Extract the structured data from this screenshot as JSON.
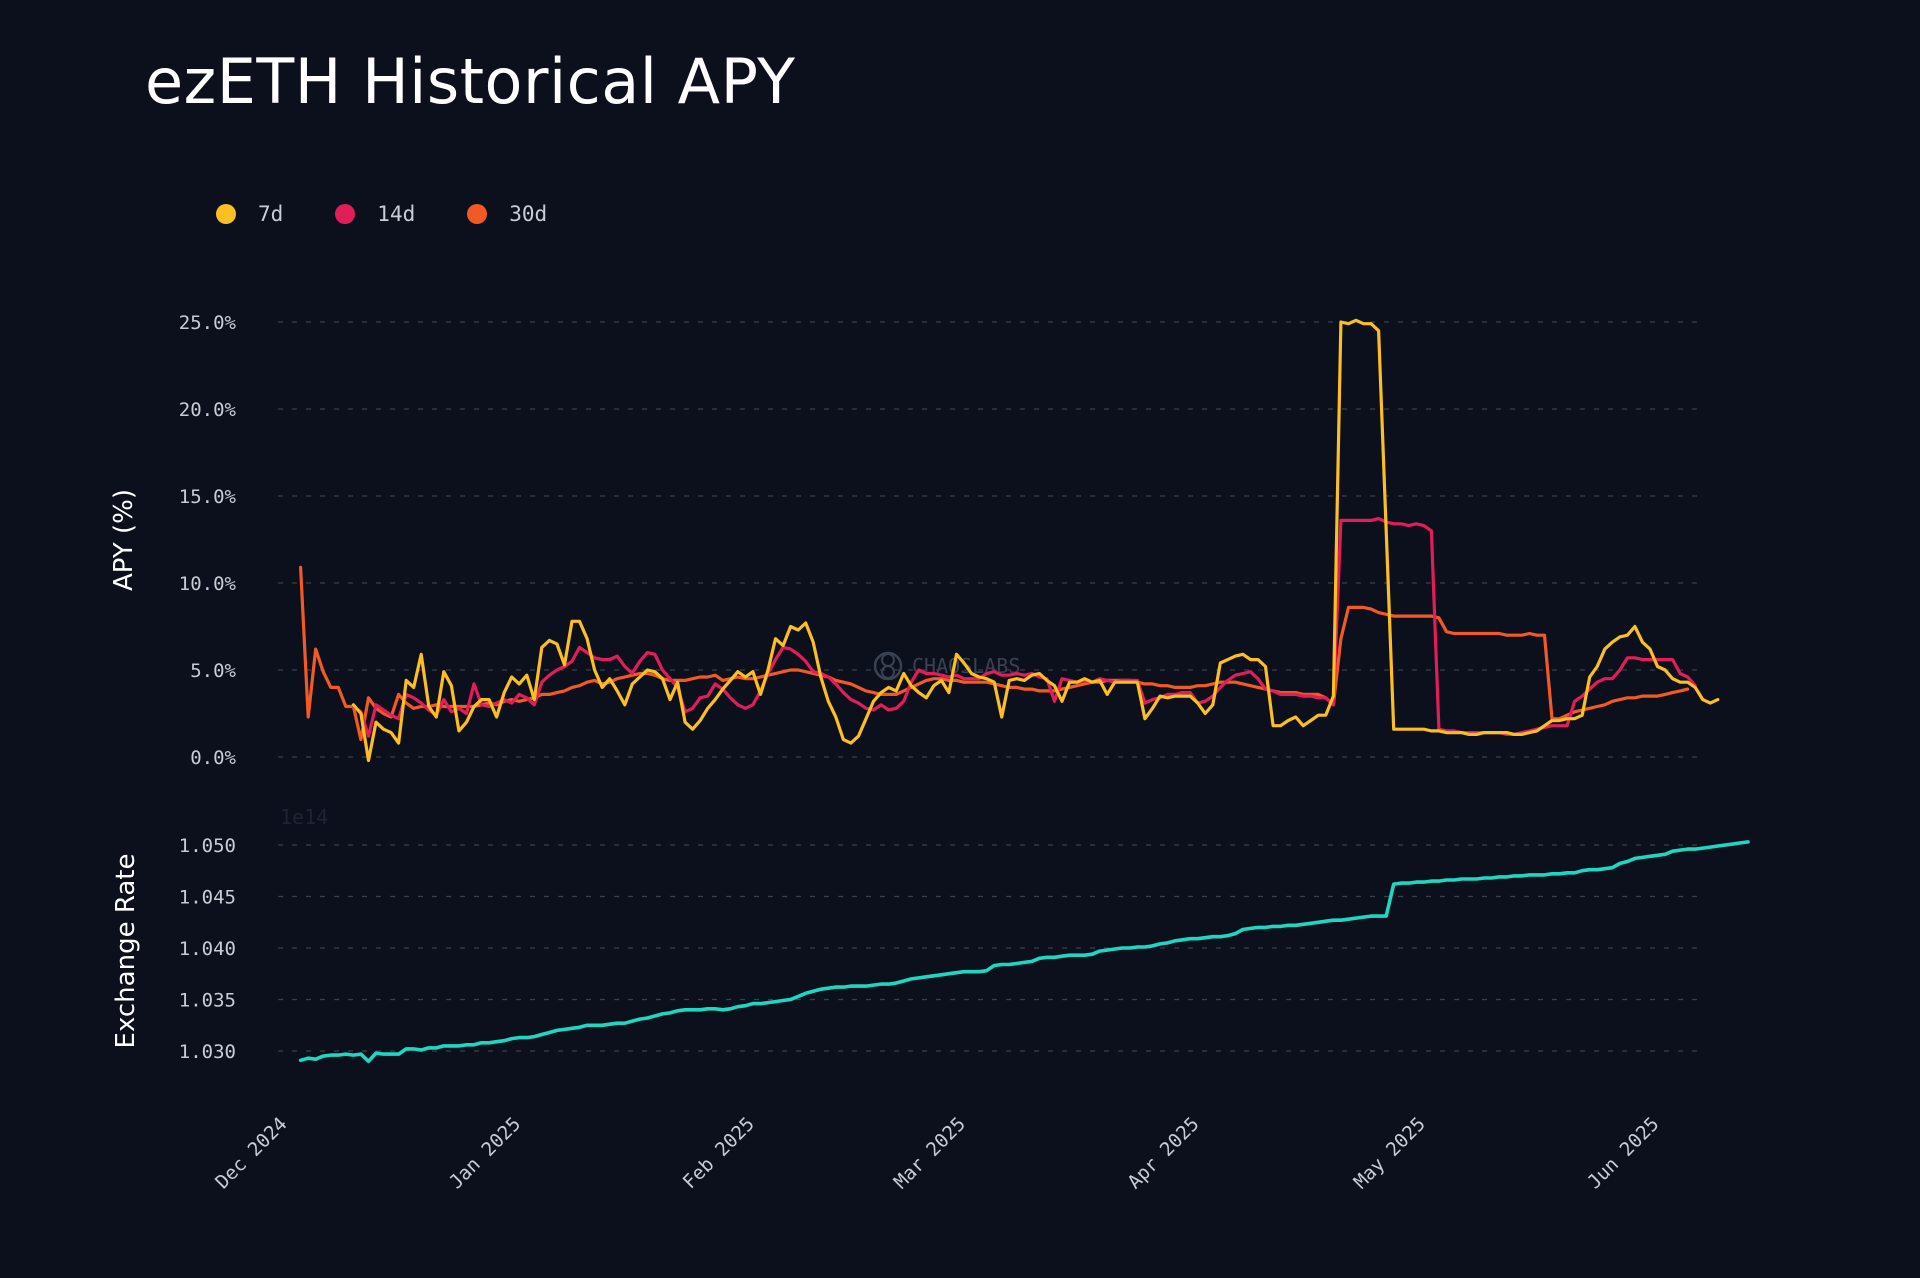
{
  "title": "ezETH Historical APY",
  "colors": {
    "background": "#0b101c",
    "grid": "#3a3f4b",
    "series_7d": "#fbbf24",
    "series_14d": "#e11d5a",
    "series_30d": "#f35a23",
    "exchange_rate": "#1fd6c0"
  },
  "watermark": "CHAOSLABS",
  "chart_data": [
    {
      "type": "line",
      "ylabel": "APY (%)",
      "ylim": [
        -1.0,
        26.5
      ],
      "yticks": [
        0,
        5,
        10,
        15,
        20,
        25
      ],
      "ytick_labels": [
        "0.0%",
        "5.0%",
        "10.0%",
        "15.0%",
        "20.0%",
        "25.0%"
      ],
      "grid": true,
      "legend_position": "top-left",
      "x_start": "2024-12-04",
      "x_step_days": 1,
      "series": [
        {
          "name": "7d",
          "color": "#fbbf24",
          "values": [
            null,
            null,
            null,
            null,
            null,
            null,
            null,
            3.0,
            2.5,
            -0.2,
            2.0,
            1.6,
            1.4,
            0.8,
            4.4,
            4.0,
            5.9,
            2.9,
            2.3,
            4.9,
            4.1,
            1.5,
            2.0,
            2.9,
            3.3,
            3.3,
            2.3,
            3.7,
            4.6,
            4.2,
            4.7,
            3.3,
            6.3,
            6.7,
            6.5,
            5.3,
            7.8,
            7.8,
            6.8,
            5.0,
            4.0,
            4.5,
            3.8,
            3.0,
            4.2,
            4.6,
            5.0,
            4.9,
            4.5,
            3.3,
            4.3,
            2.0,
            1.6,
            2.1,
            2.8,
            3.3,
            3.9,
            4.4,
            4.9,
            4.6,
            4.9,
            3.6,
            5.0,
            6.8,
            6.4,
            7.5,
            7.3,
            7.7,
            6.6,
            4.6,
            3.2,
            2.3,
            1.0,
            0.8,
            1.2,
            2.2,
            3.2,
            3.7,
            4.0,
            3.8,
            4.8,
            4.1,
            3.7,
            3.4,
            4.1,
            4.4,
            3.7,
            5.9,
            5.4,
            4.8,
            4.6,
            4.5,
            4.3,
            2.3,
            4.4,
            4.5,
            4.4,
            4.7,
            4.8,
            4.4,
            4.1,
            3.2,
            4.3,
            4.3,
            4.5,
            4.3,
            4.4,
            3.6,
            4.3,
            4.3,
            4.3,
            4.3,
            2.2,
            2.8,
            3.5,
            3.4,
            3.5,
            3.5,
            3.5,
            3.1,
            2.5,
            3.0,
            5.4,
            5.6,
            5.8,
            5.9,
            5.6,
            5.6,
            5.2,
            1.8,
            1.8,
            2.1,
            2.3,
            1.8,
            2.1,
            2.4,
            2.4,
            3.5,
            25.0,
            24.9,
            25.1,
            24.9,
            24.9,
            24.5,
            13.0,
            1.6,
            1.6,
            1.6,
            1.6,
            1.6,
            1.5,
            1.5,
            1.4,
            1.4,
            1.4,
            1.3,
            1.3,
            1.4,
            1.4,
            1.4,
            1.4,
            1.3,
            1.3,
            1.4,
            1.5,
            1.8,
            2.1,
            2.1,
            2.2,
            2.2,
            2.4,
            4.6,
            5.2,
            6.2,
            6.6,
            6.9,
            7.0,
            7.5,
            6.6,
            6.2,
            5.2,
            5.0,
            4.5,
            4.3,
            4.3,
            4.0,
            3.3,
            3.1,
            3.3
          ]
        },
        {
          "name": "14d",
          "color": "#e11d5a",
          "values": [
            null,
            null,
            null,
            null,
            null,
            null,
            null,
            2.9,
            2.6,
            1.2,
            3.0,
            2.7,
            2.4,
            2.2,
            3.6,
            3.4,
            3.1,
            2.7,
            2.4,
            3.3,
            2.6,
            2.8,
            2.5,
            4.2,
            3.0,
            2.9,
            3.1,
            3.3,
            3.1,
            3.6,
            3.4,
            3.0,
            4.3,
            4.7,
            5.0,
            5.2,
            5.5,
            6.3,
            6.0,
            5.7,
            5.6,
            5.6,
            5.8,
            5.2,
            4.8,
            5.5,
            6.0,
            5.9,
            5.0,
            4.5,
            4.0,
            2.6,
            2.8,
            3.4,
            3.5,
            4.2,
            3.9,
            3.4,
            3.0,
            2.8,
            3.0,
            3.8,
            4.8,
            5.6,
            6.3,
            6.2,
            5.9,
            5.5,
            4.9,
            4.8,
            4.6,
            4.2,
            3.7,
            3.3,
            3.1,
            2.8,
            2.7,
            3.0,
            2.7,
            2.8,
            3.2,
            4.3,
            5.0,
            4.8,
            4.8,
            4.7,
            4.6,
            4.7,
            4.5,
            4.5,
            4.5,
            4.8,
            4.9,
            4.7,
            4.7,
            4.8,
            4.7,
            4.8,
            4.6,
            4.5,
            3.2,
            4.5,
            4.4,
            4.3,
            4.4,
            4.3,
            4.5,
            4.4,
            4.3,
            4.4,
            4.4,
            4.4,
            3.1,
            3.3,
            3.4,
            3.6,
            3.6,
            3.7,
            3.7,
            3.1,
            3.2,
            3.5,
            4.0,
            4.4,
            4.7,
            4.8,
            4.9,
            4.5,
            3.9,
            3.8,
            3.6,
            3.6,
            3.6,
            3.5,
            3.5,
            3.4,
            3.4,
            3.0,
            13.6,
            13.6,
            13.6,
            13.6,
            13.6,
            13.7,
            13.5,
            13.4,
            13.4,
            13.3,
            13.4,
            13.3,
            13.0,
            1.6,
            1.5,
            1.5,
            1.4,
            1.4,
            1.4,
            1.4,
            1.4,
            1.4,
            1.3,
            1.3,
            1.4,
            1.5,
            1.6,
            1.7,
            1.8,
            1.8,
            1.8,
            3.2,
            3.5,
            3.9,
            4.3,
            4.5,
            4.5,
            5.0,
            5.7,
            5.7,
            5.6,
            5.6,
            5.6,
            5.6,
            5.6,
            4.8,
            4.6,
            4.1
          ]
        },
        {
          "name": "30d",
          "color": "#f35a23",
          "values": [
            10.9,
            2.3,
            6.2,
            4.9,
            4.0,
            4.0,
            2.9,
            2.9,
            1.0,
            3.4,
            2.8,
            2.5,
            2.3,
            3.6,
            3.1,
            2.8,
            2.9,
            2.9,
            3.0,
            2.9,
            2.9,
            2.9,
            2.9,
            2.9,
            3.0,
            3.1,
            3.0,
            3.2,
            3.3,
            3.2,
            3.3,
            3.4,
            3.6,
            3.6,
            3.7,
            3.8,
            4.0,
            4.1,
            4.3,
            4.4,
            4.2,
            4.3,
            4.5,
            4.6,
            4.7,
            4.8,
            4.8,
            4.7,
            4.5,
            4.4,
            4.4,
            4.4,
            4.5,
            4.6,
            4.6,
            4.7,
            4.4,
            4.5,
            4.6,
            4.5,
            4.5,
            4.6,
            4.7,
            4.8,
            4.9,
            5.0,
            5.0,
            4.9,
            4.8,
            4.7,
            4.6,
            4.4,
            4.3,
            4.2,
            4.0,
            3.8,
            3.7,
            3.6,
            3.6,
            3.6,
            3.8,
            4.0,
            4.2,
            4.4,
            4.5,
            4.5,
            4.4,
            4.4,
            4.3,
            4.3,
            4.3,
            4.3,
            4.2,
            4.1,
            4.0,
            4.0,
            3.9,
            3.9,
            3.8,
            3.8,
            3.8,
            3.9,
            4.0,
            4.1,
            4.2,
            4.3,
            4.3,
            4.4,
            4.4,
            4.4,
            4.4,
            4.3,
            4.2,
            4.2,
            4.1,
            4.1,
            4.0,
            4.0,
            4.0,
            4.1,
            4.1,
            4.2,
            4.3,
            4.3,
            4.3,
            4.2,
            4.1,
            4.0,
            3.9,
            3.8,
            3.7,
            3.7,
            3.7,
            3.6,
            3.6,
            3.6,
            3.4,
            3.0,
            6.8,
            8.6,
            8.6,
            8.6,
            8.5,
            8.3,
            8.2,
            8.1,
            8.1,
            8.1,
            8.1,
            8.1,
            8.1,
            8.0,
            7.2,
            7.1,
            7.1,
            7.1,
            7.1,
            7.1,
            7.1,
            7.1,
            7.0,
            7.0,
            7.0,
            7.1,
            7.0,
            7.0,
            2.2,
            2.2,
            2.4,
            2.6,
            2.7,
            2.8,
            2.9,
            3.0,
            3.2,
            3.3,
            3.4,
            3.4,
            3.5,
            3.5,
            3.5,
            3.6,
            3.7,
            3.8,
            3.9
          ]
        }
      ]
    },
    {
      "type": "line",
      "ylabel": "Exchange Rate",
      "y_offset_label": "1e14",
      "ylim": [
        1.0265,
        1.0515
      ],
      "yticks": [
        1.03,
        1.035,
        1.04,
        1.045,
        1.05
      ],
      "ytick_labels": [
        "1.030",
        "1.035",
        "1.040",
        "1.045",
        "1.050"
      ],
      "grid": true,
      "x_start": "2024-12-04",
      "x_step_days": 1,
      "series": [
        {
          "color": "#1fd6c0",
          "values": [
            1.0291,
            1.0293,
            1.0292,
            1.0295,
            1.0296,
            1.0296,
            1.0297,
            1.0296,
            1.0297,
            1.029,
            1.0298,
            1.0297,
            1.0297,
            1.0297,
            1.0302,
            1.0302,
            1.0301,
            1.0303,
            1.0303,
            1.0305,
            1.0305,
            1.0305,
            1.0306,
            1.0306,
            1.0308,
            1.0308,
            1.0309,
            1.031,
            1.0312,
            1.0313,
            1.0313,
            1.0314,
            1.0316,
            1.0318,
            1.032,
            1.0321,
            1.0322,
            1.0323,
            1.0325,
            1.0325,
            1.0325,
            1.0326,
            1.0327,
            1.0327,
            1.0329,
            1.0331,
            1.0332,
            1.0334,
            1.0336,
            1.0337,
            1.0339,
            1.034,
            1.034,
            1.034,
            1.0341,
            1.0341,
            1.034,
            1.0341,
            1.0343,
            1.0344,
            1.0346,
            1.0346,
            1.0347,
            1.0348,
            1.0349,
            1.035,
            1.0353,
            1.0356,
            1.0358,
            1.036,
            1.0361,
            1.0362,
            1.0362,
            1.0363,
            1.0363,
            1.0363,
            1.0364,
            1.0365,
            1.0365,
            1.0366,
            1.0368,
            1.037,
            1.0371,
            1.0372,
            1.0373,
            1.0374,
            1.0375,
            1.0376,
            1.0377,
            1.0377,
            1.0377,
            1.0378,
            1.0383,
            1.0384,
            1.0384,
            1.0385,
            1.0386,
            1.0387,
            1.039,
            1.0391,
            1.0391,
            1.0392,
            1.0393,
            1.0393,
            1.0393,
            1.0394,
            1.0397,
            1.0398,
            1.0399,
            1.04,
            1.04,
            1.0401,
            1.0401,
            1.0402,
            1.0404,
            1.0405,
            1.0407,
            1.0408,
            1.0409,
            1.0409,
            1.041,
            1.0411,
            1.0411,
            1.0412,
            1.0414,
            1.0418,
            1.0419,
            1.042,
            1.042,
            1.0421,
            1.0421,
            1.0422,
            1.0422,
            1.0423,
            1.0424,
            1.0425,
            1.0426,
            1.0427,
            1.0427,
            1.0428,
            1.0429,
            1.043,
            1.0431,
            1.0431,
            1.0431,
            1.0462,
            1.0463,
            1.0463,
            1.0464,
            1.0464,
            1.0465,
            1.0465,
            1.0466,
            1.0466,
            1.0467,
            1.0467,
            1.0467,
            1.0468,
            1.0468,
            1.0469,
            1.0469,
            1.047,
            1.047,
            1.0471,
            1.0471,
            1.0471,
            1.0472,
            1.0472,
            1.0473,
            1.0473,
            1.0475,
            1.0476,
            1.0476,
            1.0477,
            1.0478,
            1.0482,
            1.0484,
            1.0487,
            1.0488,
            1.0489,
            1.049,
            1.0491,
            1.0494,
            1.0495,
            1.0496,
            1.0496,
            1.0497,
            1.0498,
            1.0499,
            1.05,
            1.0501,
            1.0502,
            1.0503
          ]
        }
      ]
    }
  ],
  "x_axis": {
    "ticks": [
      {
        "date": "2024-12-01",
        "label": "Dec 2024"
      },
      {
        "date": "2025-01-01",
        "label": "Jan 2025"
      },
      {
        "date": "2025-02-01",
        "label": "Feb 2025"
      },
      {
        "date": "2025-03-01",
        "label": "Mar 2025"
      },
      {
        "date": "2025-04-01",
        "label": "Apr 2025"
      },
      {
        "date": "2025-05-01",
        "label": "May 2025"
      },
      {
        "date": "2025-06-01",
        "label": "Jun 2025"
      }
    ]
  }
}
